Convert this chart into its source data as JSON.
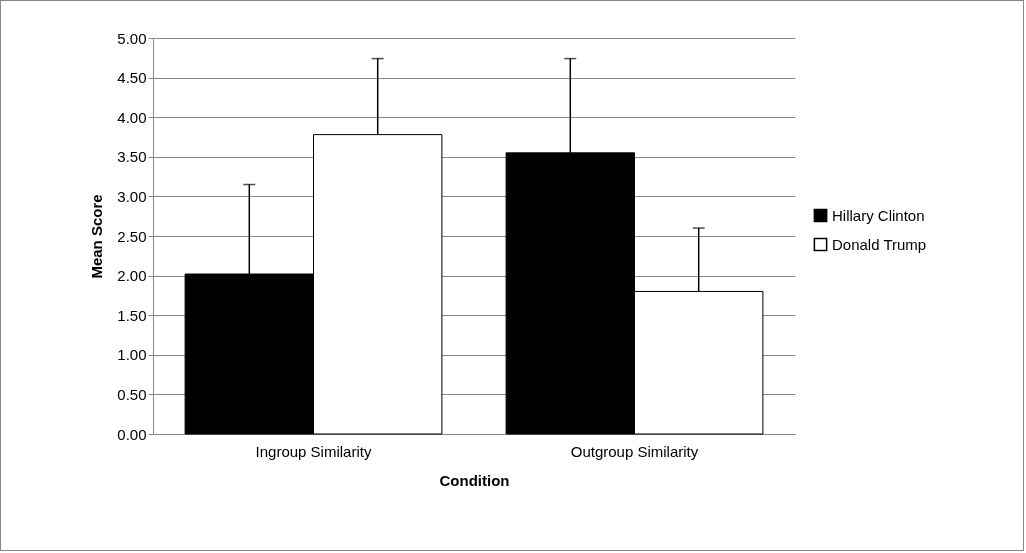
{
  "chart_data": {
    "type": "bar",
    "xlabel": "Condition",
    "ylabel": "Mean Score",
    "categories": [
      "Ingroup Similarity",
      "Outgroup Similarity"
    ],
    "series": [
      {
        "name": "Hillary Clinton",
        "color": "#000000",
        "values": [
          2.02,
          3.55
        ],
        "errors": [
          [
            2.02,
            3.15
          ],
          [
            3.55,
            4.74
          ]
        ]
      },
      {
        "name": "Donald Trump",
        "color": "#ffffff",
        "values": [
          3.78,
          1.8
        ],
        "errors": [
          [
            3.78,
            4.74
          ],
          [
            1.8,
            2.6
          ]
        ]
      }
    ],
    "ylim": [
      0,
      5
    ],
    "yticks": [
      {
        "value": 0,
        "label": "0.00"
      },
      {
        "value": 0.5,
        "label": "0.50"
      },
      {
        "value": 1,
        "label": "1.00"
      },
      {
        "value": 1.5,
        "label": "1.50"
      },
      {
        "value": 2,
        "label": "2.00"
      },
      {
        "value": 2.5,
        "label": "2.50"
      },
      {
        "value": 3,
        "label": "3.00"
      },
      {
        "value": 3.5,
        "label": "3.50"
      },
      {
        "value": 4,
        "label": "4.00"
      },
      {
        "value": 4.5,
        "label": "4.50"
      },
      {
        "value": 5,
        "label": "5.00"
      }
    ],
    "grid": "y",
    "legend": "right"
  }
}
